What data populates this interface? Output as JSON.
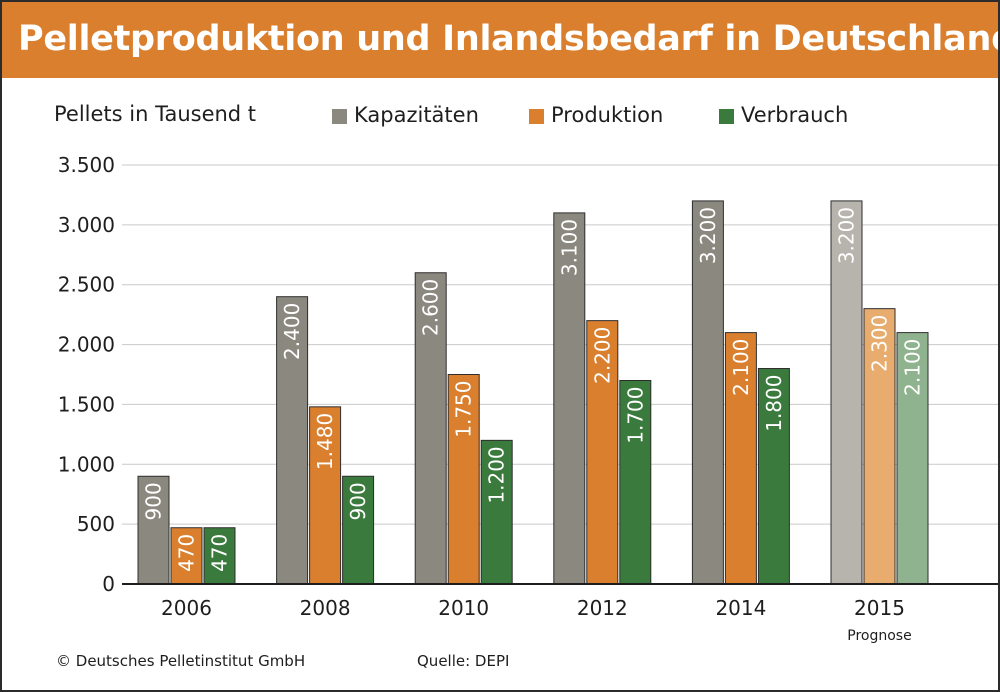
{
  "header": {
    "title": "Pelletproduktion und Inlandsbedarf in Deutschland"
  },
  "footer": {
    "copyright": "© Deutsches Pelletinstitut GmbH",
    "source": "Quelle: DEPI"
  },
  "colors": {
    "header_bg": "#d97f2e",
    "kapazitaeten": "#8a887f",
    "produktion": "#d97f2e",
    "verbrauch": "#3a7a3c",
    "kapazitaeten_prognose": "#b6b4ac",
    "produktion_prognose": "#e8ad6e",
    "verbrauch_prognose": "#8fb38e"
  },
  "chart_data": {
    "type": "bar",
    "ylabel": "Pellets in Tausend t",
    "ylim": [
      0,
      3500
    ],
    "yticks": [
      0,
      500,
      1000,
      1500,
      2000,
      2500,
      3000,
      3500
    ],
    "ytick_labels": [
      "0",
      "500",
      "1.000",
      "1.500",
      "2.000",
      "2.500",
      "3.000",
      "3.500"
    ],
    "grid": true,
    "legend_position": "top",
    "categories": [
      "2006",
      "2008",
      "2010",
      "2012",
      "2014",
      "2015"
    ],
    "category_notes": [
      "",
      "",
      "",
      "",
      "",
      "Prognose"
    ],
    "series": [
      {
        "name": "Kapazitäten",
        "values": [
          900,
          2400,
          2600,
          3100,
          3200,
          3200
        ],
        "labels": [
          "900",
          "2.400",
          "2.600",
          "3.100",
          "3.200",
          "3.200"
        ]
      },
      {
        "name": "Produktion",
        "values": [
          470,
          1480,
          1750,
          2200,
          2100,
          2300
        ],
        "labels": [
          "470",
          "1.480",
          "1.750",
          "2.200",
          "2.100",
          "2.300"
        ]
      },
      {
        "name": "Verbrauch",
        "values": [
          470,
          900,
          1200,
          1700,
          1800,
          2100
        ],
        "labels": [
          "470",
          "900",
          "1.200",
          "1.700",
          "1.800",
          "2.100"
        ]
      }
    ]
  }
}
